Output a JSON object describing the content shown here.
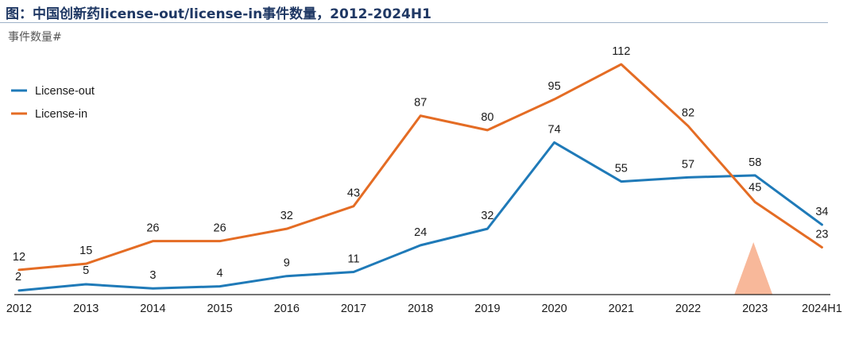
{
  "header": {
    "title": "图：中国创新药license-out/license-in事件数量，2012-2024H1",
    "unit_label": "事件数量#"
  },
  "colors": {
    "license_out": "#1f7ab8",
    "license_in": "#e46c24",
    "axis": "#222222",
    "text": "#1a1a1a",
    "marker": "#f8b89a"
  },
  "chart_data": {
    "type": "line",
    "x": [
      "2012",
      "2013",
      "2014",
      "2015",
      "2016",
      "2017",
      "2018",
      "2019",
      "2020",
      "2021",
      "2022",
      "2023",
      "2024H1"
    ],
    "series": [
      {
        "name": "License-out",
        "values": [
          2,
          5,
          3,
          4,
          9,
          11,
          24,
          32,
          74,
          55,
          57,
          58,
          34
        ]
      },
      {
        "name": "License-in",
        "values": [
          12,
          15,
          26,
          26,
          32,
          43,
          87,
          80,
          95,
          112,
          82,
          45,
          23
        ]
      }
    ],
    "ylim": [
      0,
      125
    ],
    "grid": false,
    "legend": "top-left",
    "data_labels": true,
    "annotation": {
      "type": "triangle-marker",
      "at": "2023"
    }
  }
}
